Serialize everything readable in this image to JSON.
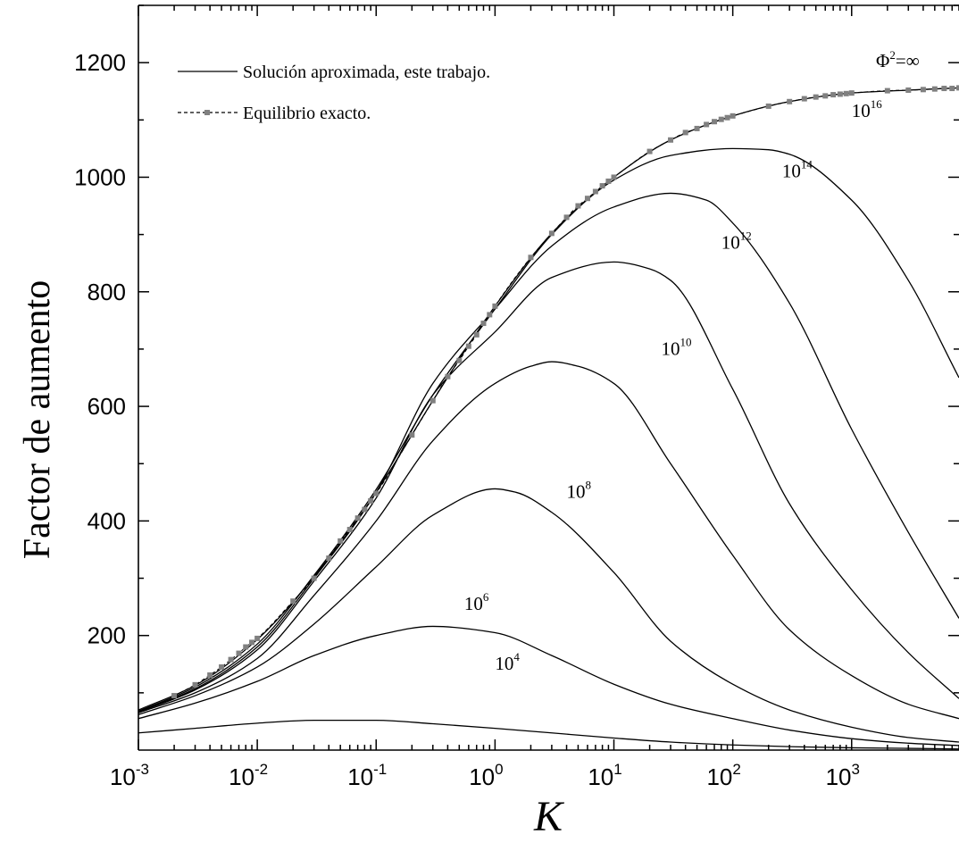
{
  "chart_data": {
    "type": "line",
    "xlabel": "K",
    "ylabel": "Factor de aumento",
    "xscale": "log",
    "xlim": [
      0.001,
      8000
    ],
    "ylim": [
      0,
      1300
    ],
    "x_tick_labels": [
      {
        "base": "10",
        "exp": "-3"
      },
      {
        "base": "10",
        "exp": "-2"
      },
      {
        "base": "10",
        "exp": "-1"
      },
      {
        "base": "10",
        "exp": "0"
      },
      {
        "base": "10",
        "exp": "1"
      },
      {
        "base": "10",
        "exp": "2"
      },
      {
        "base": "10",
        "exp": "3"
      }
    ],
    "y_ticks": [
      200,
      400,
      600,
      800,
      1000,
      1200
    ],
    "legend": {
      "placement": "top-left",
      "entries": [
        {
          "label": "Solución aproximada, este trabajo.",
          "style": "solid"
        },
        {
          "label": "Equilibrio exacto.",
          "style": "dashed-square"
        }
      ]
    },
    "equilibrium": {
      "label_base": "Φ",
      "label_sup": "2",
      "label_rest": "=∞",
      "color": "#808080",
      "x": [
        0.002,
        0.003,
        0.004,
        0.005,
        0.006,
        0.007,
        0.008,
        0.009,
        0.01,
        0.02,
        0.03,
        0.04,
        0.05,
        0.06,
        0.07,
        0.08,
        0.09,
        0.1,
        0.2,
        0.3,
        0.4,
        0.5,
        0.6,
        0.7,
        0.8,
        0.9,
        1,
        2,
        3,
        4,
        5,
        6,
        7,
        8,
        9,
        10,
        20,
        30,
        40,
        50,
        60,
        70,
        80,
        90,
        100,
        200,
        300,
        400,
        500,
        600,
        700,
        800,
        900,
        1000,
        2000,
        3000,
        4000,
        5000,
        6000,
        7000,
        8000
      ],
      "y": [
        95,
        114,
        131,
        145,
        158,
        169,
        180,
        188,
        195,
        260,
        300,
        335,
        365,
        385,
        405,
        420,
        435,
        448,
        550,
        610,
        652,
        680,
        705,
        725,
        745,
        760,
        775,
        860,
        902,
        930,
        950,
        963,
        975,
        985,
        993,
        1000,
        1045,
        1065,
        1078,
        1085,
        1092,
        1097,
        1101,
        1104,
        1107,
        1124,
        1132,
        1137,
        1140,
        1142,
        1144,
        1145,
        1146,
        1147,
        1151,
        1152,
        1153,
        1154,
        1155,
        1155,
        1156
      ]
    },
    "series": [
      {
        "label_base": "10",
        "label_exp": "4",
        "x": [
          0.001,
          0.003,
          0.01,
          0.03,
          0.1,
          0.3,
          1,
          3,
          10,
          30,
          100,
          300,
          1000,
          3000,
          8000
        ],
        "y": [
          30,
          38,
          47,
          52,
          52,
          46,
          38,
          30,
          21,
          14,
          9,
          6,
          4,
          3,
          2
        ]
      },
      {
        "label_base": "10",
        "label_exp": "6",
        "x": [
          0.001,
          0.003,
          0.01,
          0.03,
          0.1,
          0.3,
          1,
          3,
          10,
          30,
          100,
          300,
          1000,
          3000,
          8000
        ],
        "y": [
          55,
          82,
          120,
          165,
          200,
          216,
          205,
          165,
          115,
          80,
          55,
          35,
          20,
          12,
          8
        ]
      },
      {
        "label_base": "10",
        "label_exp": "8",
        "x": [
          0.001,
          0.003,
          0.01,
          0.03,
          0.1,
          0.3,
          1,
          1.5,
          3,
          10,
          30,
          100,
          300,
          1000,
          3000,
          8000
        ],
        "y": [
          62,
          95,
          145,
          220,
          320,
          410,
          456,
          450,
          415,
          310,
          190,
          115,
          70,
          40,
          22,
          14
        ]
      },
      {
        "label_base": "10",
        "label_exp": "10",
        "x": [
          0.001,
          0.003,
          0.01,
          0.03,
          0.1,
          0.3,
          1,
          2,
          3,
          5,
          10,
          30,
          100,
          300,
          1000,
          3000,
          8000
        ],
        "y": [
          65,
          100,
          160,
          270,
          400,
          540,
          640,
          670,
          678,
          670,
          640,
          500,
          340,
          210,
          130,
          80,
          55
        ]
      },
      {
        "label_base": "10",
        "label_exp": "12",
        "x": [
          0.001,
          0.003,
          0.01,
          0.03,
          0.1,
          0.3,
          1,
          3,
          10,
          20,
          30,
          100,
          300,
          1000,
          3000,
          8000
        ],
        "y": [
          66,
          105,
          175,
          295,
          440,
          620,
          730,
          825,
          852,
          840,
          820,
          630,
          430,
          280,
          170,
          90
        ]
      },
      {
        "label_base": "10",
        "label_exp": "14",
        "x": [
          0.001,
          0.003,
          0.01,
          0.03,
          0.1,
          0.3,
          1,
          3,
          10,
          30,
          60,
          100,
          300,
          1000,
          3000,
          8000
        ],
        "y": [
          67,
          107,
          180,
          300,
          450,
          640,
          770,
          880,
          948,
          972,
          960,
          920,
          780,
          560,
          380,
          230
        ]
      },
      {
        "label_base": "10",
        "label_exp": "16",
        "x": [
          0.001,
          0.003,
          0.01,
          0.03,
          0.1,
          0.3,
          1,
          3,
          10,
          30,
          100,
          200,
          300,
          1000,
          3000,
          8000
        ],
        "y": [
          68,
          110,
          185,
          305,
          455,
          620,
          770,
          900,
          995,
          1038,
          1050,
          1048,
          1040,
          960,
          820,
          650
        ]
      },
      {
        "label_base": "",
        "label_exp": "",
        "x": [
          0.001,
          0.003,
          0.01,
          0.03,
          0.1,
          0.3,
          1,
          3,
          10,
          30,
          100,
          300,
          1000,
          3000,
          8000
        ],
        "y": [
          70,
          113,
          193,
          303,
          450,
          610,
          775,
          902,
          1000,
          1065,
          1107,
          1132,
          1147,
          1152,
          1156
        ]
      }
    ]
  }
}
